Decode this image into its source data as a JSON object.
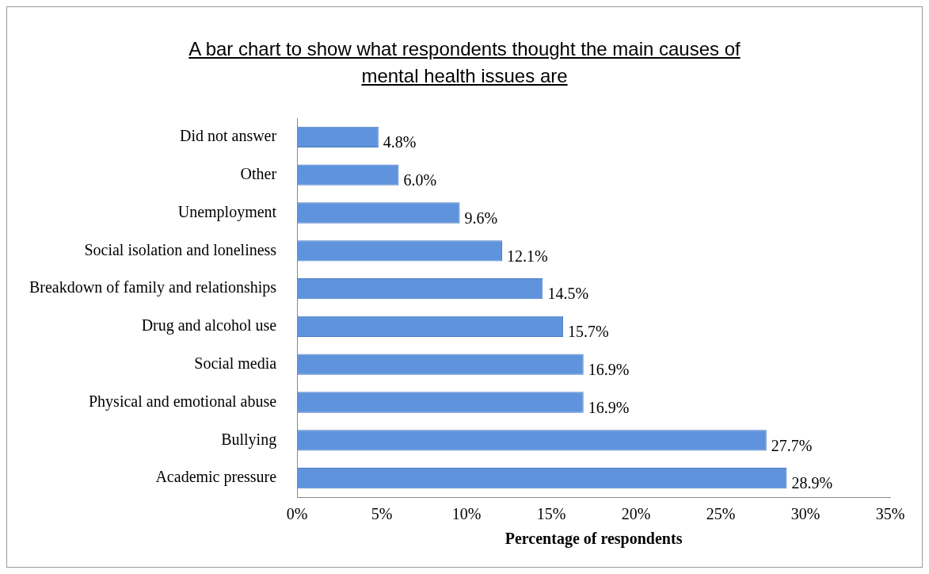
{
  "chart_data": {
    "type": "bar",
    "orientation": "horizontal",
    "title": "A bar chart to show what respondents thought the main causes of mental health issues are",
    "xlabel": "Percentage of respondents",
    "categories": [
      "Did not answer",
      "Other",
      "Unemployment",
      "Social isolation and loneliness",
      "Breakdown of family and relationships",
      "Drug and alcohol use",
      "Social media",
      "Physical and emotional abuse",
      "Bullying",
      "Academic pressure"
    ],
    "values": [
      4.8,
      6.0,
      9.6,
      12.1,
      14.5,
      15.7,
      16.9,
      16.9,
      27.7,
      28.9
    ],
    "value_labels": [
      "4.8%",
      "6.0%",
      "9.6%",
      "12.1%",
      "14.5%",
      "15.7%",
      "16.9%",
      "16.9%",
      "27.7%",
      "28.9%"
    ],
    "color": "#5f94dc",
    "xlim": [
      0,
      35
    ],
    "xticks": [
      {
        "value": 0,
        "label": "0%"
      },
      {
        "value": 5,
        "label": "5%"
      },
      {
        "value": 10,
        "label": "10%"
      },
      {
        "value": 15,
        "label": "15%"
      },
      {
        "value": 20,
        "label": "20%"
      },
      {
        "value": 25,
        "label": "25%"
      },
      {
        "value": 30,
        "label": "30%"
      },
      {
        "value": 35,
        "label": "35%"
      }
    ],
    "grid": false,
    "legend": false
  }
}
